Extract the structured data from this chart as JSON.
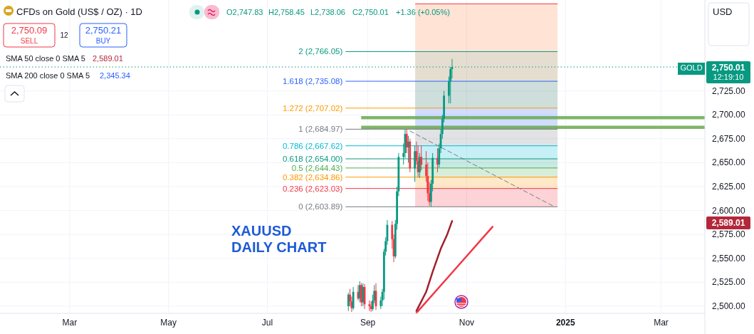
{
  "chart_data": {
    "type": "candlestick",
    "title": "CFDs on Gold (US$ / OZ) · 1D",
    "x": [
      "2024-08-20",
      "2024-08-21",
      "2024-08-22",
      "2024-08-23",
      "2024-08-26",
      "2024-08-27",
      "2024-08-28",
      "2024-08-29",
      "2024-08-30",
      "2024-09-02",
      "2024-09-03",
      "2024-09-04",
      "2024-09-05",
      "2024-09-06",
      "2024-09-09",
      "2024-09-10",
      "2024-09-11",
      "2024-09-12",
      "2024-09-13",
      "2024-09-16",
      "2024-09-17",
      "2024-09-18",
      "2024-09-19",
      "2024-09-20",
      "2024-09-23",
      "2024-09-24",
      "2024-09-25",
      "2024-09-26",
      "2024-09-27",
      "2024-09-30",
      "2024-10-01",
      "2024-10-02",
      "2024-10-03",
      "2024-10-04",
      "2024-10-07",
      "2024-10-08",
      "2024-10-09",
      "2024-10-10",
      "2024-10-11",
      "2024-10-14",
      "2024-10-15",
      "2024-10-16",
      "2024-10-17",
      "2024-10-18",
      "2024-10-21",
      "2024-10-22",
      "2024-10-23"
    ],
    "ohlc": [
      [
        2500,
        2514,
        2495,
        2512
      ],
      [
        2512,
        2518,
        2500,
        2505
      ],
      [
        2505,
        2510,
        2494,
        2498
      ],
      [
        2498,
        2520,
        2496,
        2515
      ],
      [
        2515,
        2522,
        2506,
        2508
      ],
      [
        2508,
        2526,
        2504,
        2522
      ],
      [
        2522,
        2524,
        2500,
        2504
      ],
      [
        2504,
        2524,
        2500,
        2520
      ],
      [
        2520,
        2523,
        2497,
        2502
      ],
      [
        2502,
        2506,
        2495,
        2500
      ],
      [
        2500,
        2505,
        2494,
        2497
      ],
      [
        2497,
        2512,
        2495,
        2506
      ],
      [
        2506,
        2522,
        2503,
        2516
      ],
      [
        2516,
        2524,
        2496,
        2500
      ],
      [
        2500,
        2510,
        2497,
        2506
      ],
      [
        2506,
        2518,
        2500,
        2515
      ],
      [
        2515,
        2560,
        2507,
        2557
      ],
      [
        2557,
        2572,
        2553,
        2568
      ],
      [
        2568,
        2590,
        2564,
        2585
      ],
      [
        2585,
        2589,
        2560,
        2570
      ],
      [
        2570,
        2575,
        2546,
        2552
      ],
      [
        2552,
        2590,
        2550,
        2586
      ],
      [
        2586,
        2625,
        2580,
        2620
      ],
      [
        2620,
        2660,
        2615,
        2656
      ],
      [
        2656,
        2670,
        2648,
        2660
      ],
      [
        2660,
        2685,
        2655,
        2680
      ],
      [
        2680,
        2685,
        2660,
        2666
      ],
      [
        2666,
        2678,
        2650,
        2672
      ],
      [
        2672,
        2675,
        2640,
        2644
      ],
      [
        2644,
        2668,
        2630,
        2662
      ],
      [
        2662,
        2672,
        2648,
        2652
      ],
      [
        2652,
        2668,
        2635,
        2640
      ],
      [
        2640,
        2660,
        2634,
        2656
      ],
      [
        2656,
        2668,
        2642,
        2648
      ],
      [
        2648,
        2662,
        2630,
        2636
      ],
      [
        2636,
        2650,
        2610,
        2618
      ],
      [
        2618,
        2630,
        2605,
        2609
      ],
      [
        2609,
        2632,
        2604,
        2628
      ],
      [
        2628,
        2660,
        2620,
        2655
      ],
      [
        2655,
        2665,
        2640,
        2648
      ],
      [
        2648,
        2670,
        2645,
        2665
      ],
      [
        2665,
        2685,
        2660,
        2680
      ],
      [
        2680,
        2700,
        2675,
        2696
      ],
      [
        2696,
        2725,
        2692,
        2720
      ],
      [
        2720,
        2740,
        2712,
        2735
      ],
      [
        2735,
        2750,
        2712,
        2747.83
      ],
      [
        2747.83,
        2758.45,
        2738.06,
        2750.01
      ]
    ],
    "colors": [
      "#089981",
      "#f23645",
      "#f23645",
      "#089981",
      "#f23645",
      "#089981",
      "#f23645",
      "#089981",
      "#f23645",
      "#f23645",
      "#f23645",
      "#089981",
      "#089981",
      "#f23645",
      "#089981",
      "#089981",
      "#089981",
      "#089981",
      "#089981",
      "#f23645",
      "#f23645",
      "#089981",
      "#089981",
      "#089981",
      "#089981",
      "#089981",
      "#f23645",
      "#089981",
      "#f23645",
      "#089981",
      "#f23645",
      "#f23645",
      "#089981",
      "#f23645",
      "#f23645",
      "#f23645",
      "#f23645",
      "#089981",
      "#089981",
      "#f23645",
      "#089981",
      "#089981",
      "#089981",
      "#089981",
      "#089981",
      "#089981",
      "#089981"
    ],
    "series": [
      {
        "type": "line",
        "color": "#a11f2c",
        "x": [
          "2024-10-01",
          "2024-10-07",
          "2024-10-11",
          "2024-10-16",
          "2024-10-20",
          "2024-10-23"
        ],
        "values": [
          2495,
          2515,
          2536,
          2560,
          2575,
          2589
        ]
      },
      {
        "type": "line",
        "color": "#f23645",
        "x": [
          "2024-10-01",
          "2024-10-24",
          "2024-11-17"
        ],
        "values": [
          2493,
          2537,
          2583
        ]
      },
      {
        "type": "line",
        "color": "#787b86",
        "line_style": "dashed",
        "x": [
          "2024-09-27",
          "2024-12-24"
        ],
        "values": [
          2683,
          2605
        ]
      }
    ],
    "xlim": [
      "2024-01-18",
      "2025-03-28"
    ],
    "xticks": [
      {
        "value": "2024-03-01",
        "label": "Mar"
      },
      {
        "value": "2024-05-01",
        "label": "May"
      },
      {
        "value": "2024-07-01",
        "label": "Jul"
      },
      {
        "value": "2024-09-01",
        "label": "Sep"
      },
      {
        "value": "2024-11-01",
        "label": "Nov"
      },
      {
        "value": "2025-01-01",
        "label": "2025"
      },
      {
        "value": "2025-03-01",
        "label": "Mar"
      }
    ],
    "ylim": [
      2492.5,
      2820
    ],
    "yticks": [
      {
        "value": 2500,
        "label": "2,500.00"
      },
      {
        "value": 2525,
        "label": "2,525.00"
      },
      {
        "value": 2550,
        "label": "2,550.00"
      },
      {
        "value": 2575,
        "label": "2,575.00"
      },
      {
        "value": 2600,
        "label": "2,600.00"
      },
      {
        "value": 2625,
        "label": "2,625.00"
      },
      {
        "value": 2650,
        "label": "2,650.00"
      },
      {
        "value": 2675,
        "label": "2,675.00"
      },
      {
        "value": 2700,
        "label": "2,700.00"
      },
      {
        "value": 2725,
        "label": "2,725.00"
      }
    ],
    "grid": true,
    "ref_lines": [
      {
        "axis": "y",
        "value": 2603.89,
        "label": "0 (2,603.89)",
        "color": "#787b86"
      },
      {
        "axis": "y",
        "value": 2623.03,
        "label": "0.236 (2,623.03)",
        "color": "#f23645"
      },
      {
        "axis": "y",
        "value": 2634.86,
        "label": "0.382 (2,634.86)",
        "color": "#ff9800"
      },
      {
        "axis": "y",
        "value": 2644.43,
        "label": "0.5 (2,644.43)",
        "color": "#4caf50"
      },
      {
        "axis": "y",
        "value": 2654.0,
        "label": "0.618 (2,654.00)",
        "color": "#089981"
      },
      {
        "axis": "y",
        "value": 2667.62,
        "label": "0.786 (2,667.62)",
        "color": "#00bcd4"
      },
      {
        "axis": "y",
        "value": 2684.97,
        "label": "1 (2,684.97)",
        "color": "#787b86"
      },
      {
        "axis": "y",
        "value": 2707.02,
        "label": "1.272 (2,707.02)",
        "color": "#ff9800"
      },
      {
        "axis": "y",
        "value": 2735.08,
        "label": "1.618 (2,735.08)",
        "color": "#2962ff"
      },
      {
        "axis": "y",
        "value": 2766.05,
        "label": "2 (2,766.05)",
        "color": "#089981"
      },
      {
        "axis": "y",
        "value": 2816,
        "color": "#f23645"
      },
      {
        "axis": "y",
        "value": 2697,
        "color": "#6aa84f"
      },
      {
        "axis": "y",
        "value": 2687,
        "color": "#6aa84f"
      },
      {
        "axis": "y",
        "value": 2750.01,
        "color": "#089981",
        "line_style": "dotted"
      }
    ],
    "bands": [
      {
        "axis": "y",
        "from": 2603.89,
        "to": 2623.03,
        "color": "#f23645"
      },
      {
        "axis": "y",
        "from": 2623.03,
        "to": 2634.86,
        "color": "#ff9800"
      },
      {
        "axis": "y",
        "from": 2634.86,
        "to": 2644.43,
        "color": "#4caf50"
      },
      {
        "axis": "y",
        "from": 2644.43,
        "to": 2654.0,
        "color": "#089981"
      },
      {
        "axis": "y",
        "from": 2654.0,
        "to": 2667.62,
        "color": "#00bcd4"
      },
      {
        "axis": "y",
        "from": 2667.62,
        "to": 2684.97,
        "color": "#787b86"
      },
      {
        "axis": "y",
        "from": 2684.97,
        "to": 2707.02,
        "color": "#2962ff"
      },
      {
        "axis": "y",
        "from": 2707.02,
        "to": 2735.08,
        "color": "#1f6b5a"
      },
      {
        "axis": "y",
        "from": 2735.08,
        "to": 2766.05,
        "color": "#8a6a2a"
      },
      {
        "axis": "y",
        "from": 2766.05,
        "to": 2816,
        "color": "#ff7f3f"
      }
    ],
    "annotations": [
      "2,750.09",
      "SELL",
      "12",
      "2,750.21",
      "BUY",
      "SMA 50 close 0 SMA 5",
      "2,589.01",
      "SMA 200 close 0 SMA 5",
      "2,345.34",
      "O2,747.83",
      "H2,758.45",
      "L2,738.06",
      "C2,750.01",
      "+1.36 (+0.05%)",
      "USD",
      "GOLD",
      "2,750.01",
      "12:19:10",
      "2,589.01",
      "XAUUSD",
      "DAILY CHART"
    ]
  }
}
